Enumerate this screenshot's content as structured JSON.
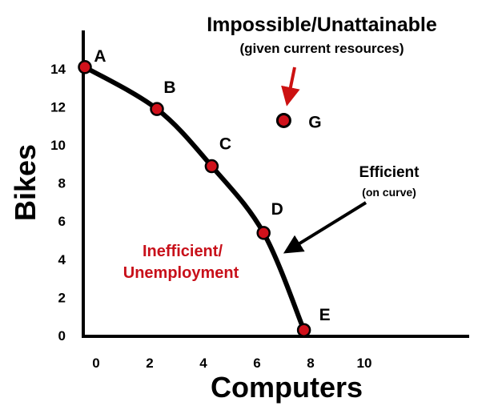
{
  "chart_data": {
    "type": "line",
    "title": "",
    "xlabel": "Computers",
    "ylabel": "Bikes",
    "x_ticks": [
      "0",
      "2",
      "4",
      "6",
      "8",
      "10"
    ],
    "y_ticks": [
      "0",
      "2",
      "4",
      "6",
      "8",
      "10",
      "12",
      "14"
    ],
    "xlim": [
      0,
      14
    ],
    "ylim": [
      0,
      17
    ],
    "grid": false,
    "points": [
      {
        "label": "A",
        "x": 0,
        "y": 14
      },
      {
        "label": "B",
        "x": 2.5,
        "y": 11.8
      },
      {
        "label": "C",
        "x": 4.4,
        "y": 8.8
      },
      {
        "label": "D",
        "x": 6.2,
        "y": 5.3
      },
      {
        "label": "E",
        "x": 7.6,
        "y": 0.2
      }
    ],
    "outside_point": {
      "label": "G",
      "x": 6.9,
      "y": 11.2
    },
    "annotations": {
      "impossible_title": "Impossible/Unattainable",
      "impossible_subtitle": "(given current resources)",
      "efficient_title": "Efficient",
      "efficient_subtitle": "(on curve)",
      "inefficient_line1": "Inefficient/",
      "inefficient_line2": "Unemployment"
    },
    "colors": {
      "curve": "#000000",
      "point_fill": "#d0111b",
      "point_stroke": "#000000",
      "highlight_text": "#c8101a",
      "arrow_red": "#cc1111"
    }
  }
}
